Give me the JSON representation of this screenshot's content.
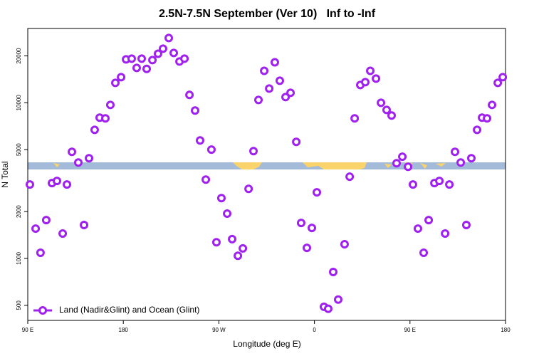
{
  "chart_data": {
    "type": "scatter",
    "title": "2.5N-7.5N September (Ver 10)   Inf to -Inf",
    "x_label": "Longitude (deg E)",
    "y_label": "N Total",
    "log_y": true,
    "legend": "bottom left",
    "xlim": [
      90,
      540
    ],
    "xticks": [
      {
        "value": 90,
        "label": "90 E"
      },
      180,
      {
        "value": 270,
        "label": "90 W"
      },
      {
        "value": 360,
        "label": "0"
      },
      {
        "value": 450,
        "label": "90 E"
      },
      {
        "value": 540,
        "label": "180"
      }
    ],
    "ylim": [
      400,
      30000
    ],
    "yticks": [
      500,
      1000,
      2000,
      5000,
      10000,
      20000
    ],
    "x": [
      92,
      97.4,
      102,
      107.4,
      112.8,
      117.5,
      122.9,
      126.9,
      131.6,
      137.6,
      143,
      147.7,
      153,
      157.7,
      163.1,
      167.8,
      172.5,
      177.9,
      182.6,
      187.9,
      192.6,
      197.3,
      202,
      207.4,
      212.7,
      217.4,
      222.8,
      227.5,
      232.9,
      237.6,
      242.3,
      247.6,
      252.3,
      257.7,
      263,
      267.7,
      272.4,
      277.8,
      282.5,
      287.9,
      292.6,
      298,
      302.6,
      307.3,
      312.7,
      317.4,
      322.7,
      327.4,
      332.8,
      337.5,
      342.9,
      347.5,
      352.9,
      357.6,
      362.3,
      369,
      373,
      377.7,
      382.4,
      388.4,
      393.2,
      397.9,
      403.2,
      407.9,
      412.6,
      418,
      422.7,
      428,
      432.7,
      437.4,
      442.8,
      448.2,
      452.8,
      457.5,
      462.9,
      467.6,
      473,
      477.7,
      483.1,
      487.1,
      492.4,
      497.8,
      503.1,
      507.8,
      513.2,
      517.9,
      522.6,
      527.3,
      532.7,
      537.4
    ],
    "series": [
      {
        "name": "Land (Nadir&Glint) and Ocean (Glint)",
        "color": "#a020f0",
        "values": [
          2985,
          1555,
          1088,
          1764,
          3048,
          3145,
          1445,
          2985,
          4840,
          4130,
          1640,
          4400,
          6700,
          8020,
          7940,
          9690,
          13430,
          14600,
          19000,
          19200,
          16750,
          19200,
          16500,
          18800,
          20650,
          22240,
          26050,
          20900,
          18400,
          19200,
          11230,
          8910,
          5730,
          3210,
          5000,
          1270,
          2440,
          1940,
          1330,
          1040,
          1160,
          2800,
          4890,
          10430,
          16040,
          12340,
          18200,
          13860,
          10880,
          11590,
          5610,
          1690,
          1170,
          1570,
          2660,
          489,
          475,
          819,
          544,
          1234,
          3350,
          7940,
          13000,
          13560,
          16040,
          14300,
          10000,
          9000,
          8280,
          4090,
          4500,
          3880,
          2985,
          1555,
          1088,
          1764,
          3048,
          3145,
          1445,
          2985,
          4840,
          4130,
          1640,
          4400,
          6700,
          8020,
          7940,
          9690,
          13430,
          14600
        ]
      }
    ]
  }
}
